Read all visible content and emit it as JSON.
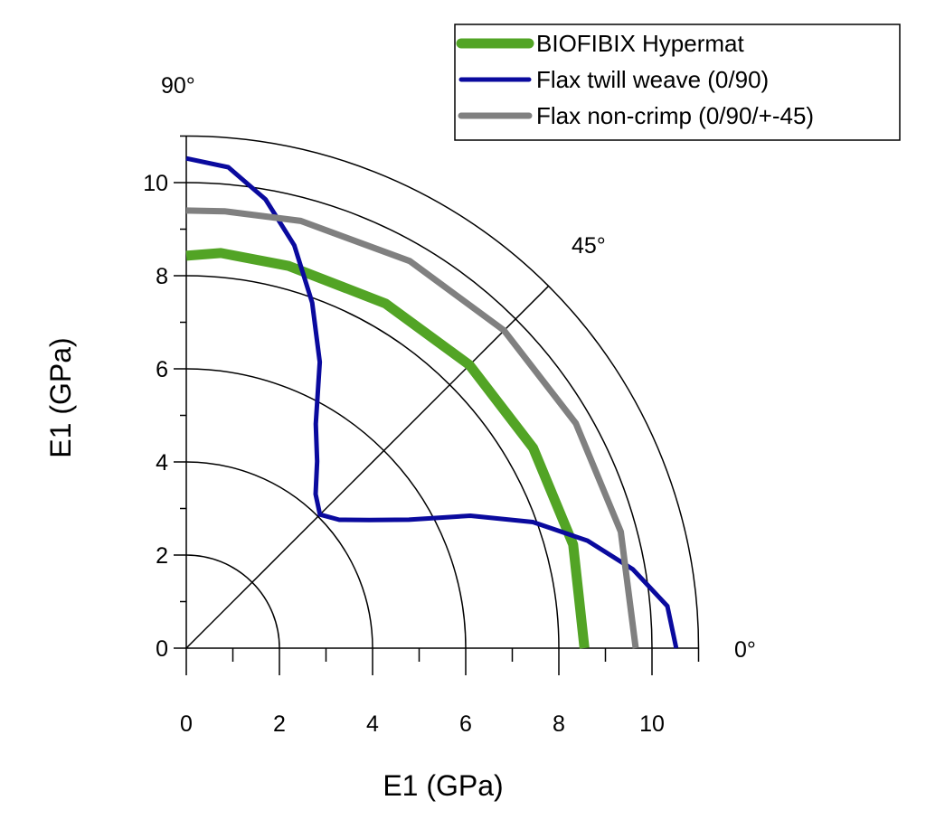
{
  "chart_data": {
    "type": "polar-line",
    "title": "",
    "xlabel": "E1 (GPa)",
    "ylabel": "E1 (GPa)",
    "rlim": [
      0,
      11
    ],
    "grid_radii": [
      2,
      4,
      6,
      8,
      10
    ],
    "x_ticks": [
      "0",
      "2",
      "4",
      "6",
      "8",
      "10"
    ],
    "y_ticks": [
      "0",
      "2",
      "4",
      "6",
      "8",
      "10"
    ],
    "tick_values": [
      0,
      2,
      4,
      6,
      8,
      10
    ],
    "angle_labels": {
      "a0": "0°",
      "a45": "45°",
      "a90": "90°"
    },
    "legend_position": "top-right",
    "series": [
      {
        "name": "BIOFIBIX Hypermat",
        "color": "#52a425",
        "width": 11,
        "points": [
          [
            0,
            8.55
          ],
          [
            15,
            8.6
          ],
          [
            30,
            8.6
          ],
          [
            45,
            8.6
          ],
          [
            60,
            8.55
          ],
          [
            75,
            8.5
          ],
          [
            85,
            8.52
          ],
          [
            90,
            8.43
          ]
        ]
      },
      {
        "name": "Flax twill weave (0/90)",
        "color": "#0a0a9e",
        "width": 5,
        "points": [
          [
            0,
            10.52
          ],
          [
            5,
            10.37
          ],
          [
            10,
            9.74
          ],
          [
            15,
            8.92
          ],
          [
            20,
            7.92
          ],
          [
            25,
            6.73
          ],
          [
            30,
            5.52
          ],
          [
            35,
            4.8
          ],
          [
            40,
            4.29
          ],
          [
            45,
            4.06
          ],
          [
            50,
            4.32
          ],
          [
            55,
            4.9
          ],
          [
            60,
            5.56
          ],
          [
            65,
            6.78
          ],
          [
            70,
            7.9
          ],
          [
            75,
            8.96
          ],
          [
            80,
            9.79
          ],
          [
            85,
            10.37
          ],
          [
            90,
            10.52
          ]
        ]
      },
      {
        "name": "Flax non-crimp (0/90/+-45)",
        "color": "#808080",
        "width": 7,
        "points": [
          [
            0,
            9.65
          ],
          [
            15,
            9.66
          ],
          [
            30,
            9.66
          ],
          [
            45,
            9.65
          ],
          [
            60,
            9.6
          ],
          [
            75,
            9.5
          ],
          [
            85,
            9.42
          ],
          [
            90,
            9.4
          ]
        ]
      }
    ]
  }
}
